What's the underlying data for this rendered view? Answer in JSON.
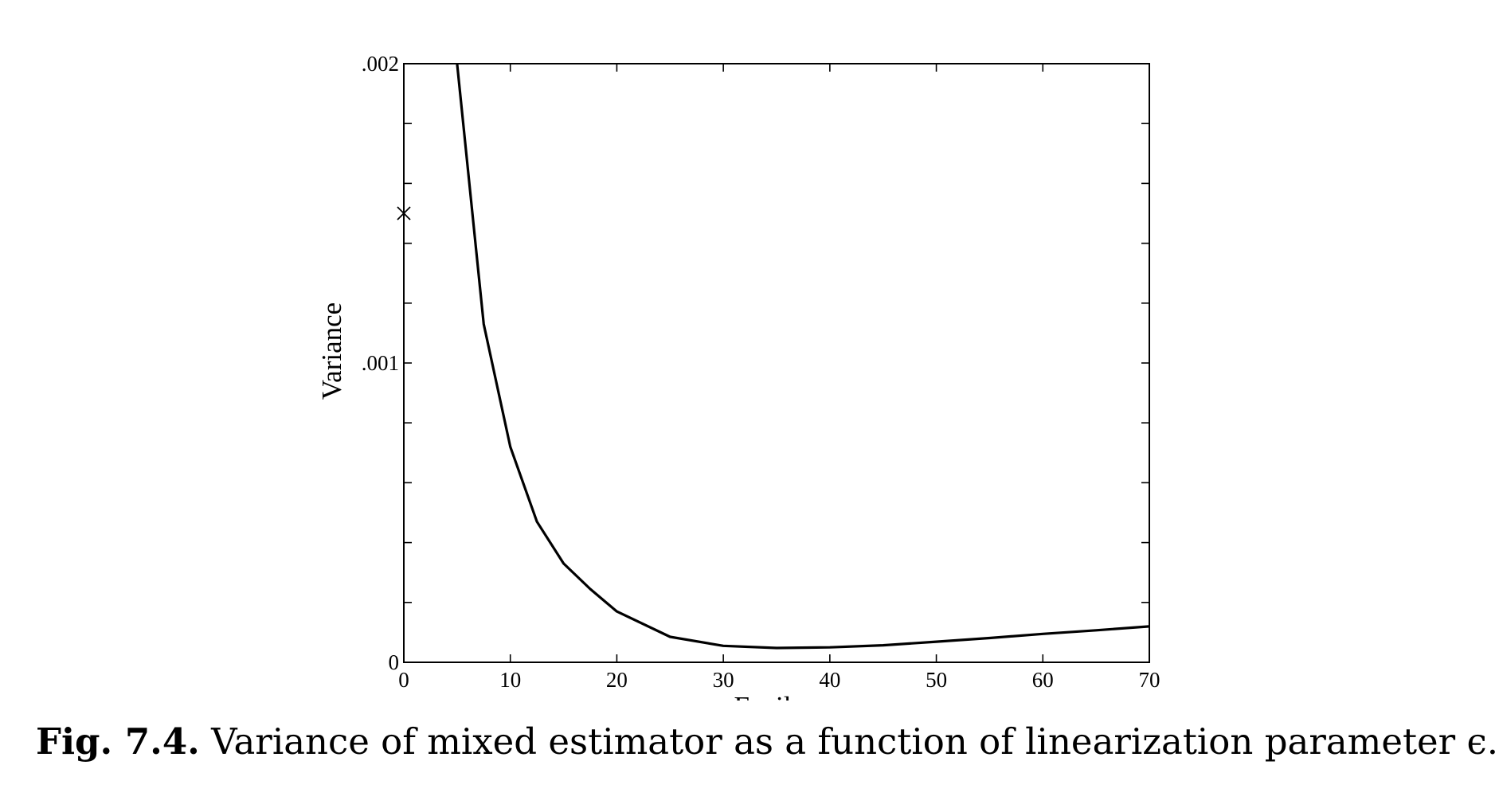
{
  "caption": {
    "label": "Fig. 7.4.",
    "text": "Variance of mixed estimator as a function of linearization parameter ϵ."
  },
  "chart_data": {
    "type": "line",
    "title": "",
    "xlabel": "Epsilon",
    "ylabel": "Variance",
    "xlim": [
      0,
      70
    ],
    "ylim": [
      0,
      0.002
    ],
    "x_ticks": [
      0,
      10,
      20,
      30,
      40,
      50,
      60,
      70
    ],
    "x_tick_labels": [
      "0",
      "10",
      "20",
      "30",
      "40",
      "50",
      "60",
      "70"
    ],
    "y_ticks": [
      0,
      0.001,
      0.002
    ],
    "y_tick_labels": [
      "0",
      ".001",
      ".002"
    ],
    "y_minor_step": 0.0002,
    "grid": false,
    "series": [
      {
        "x": [
          5,
          7.5,
          10,
          12.5,
          15,
          17.5,
          20,
          25,
          30,
          35,
          40,
          45,
          50,
          55,
          60,
          65,
          70
        ],
        "y": [
          0.002,
          0.00113,
          0.00072,
          0.00047,
          0.00033,
          0.000245,
          0.00017,
          8.5e-05,
          5.5e-05,
          4.8e-05,
          5e-05,
          5.7e-05,
          6.9e-05,
          8.1e-05,
          9.5e-05,
          0.000107,
          0.00012
        ]
      }
    ],
    "markers": [
      {
        "symbol": "x",
        "x": 0,
        "y": 0.0015
      }
    ],
    "line_color": "#000000"
  }
}
